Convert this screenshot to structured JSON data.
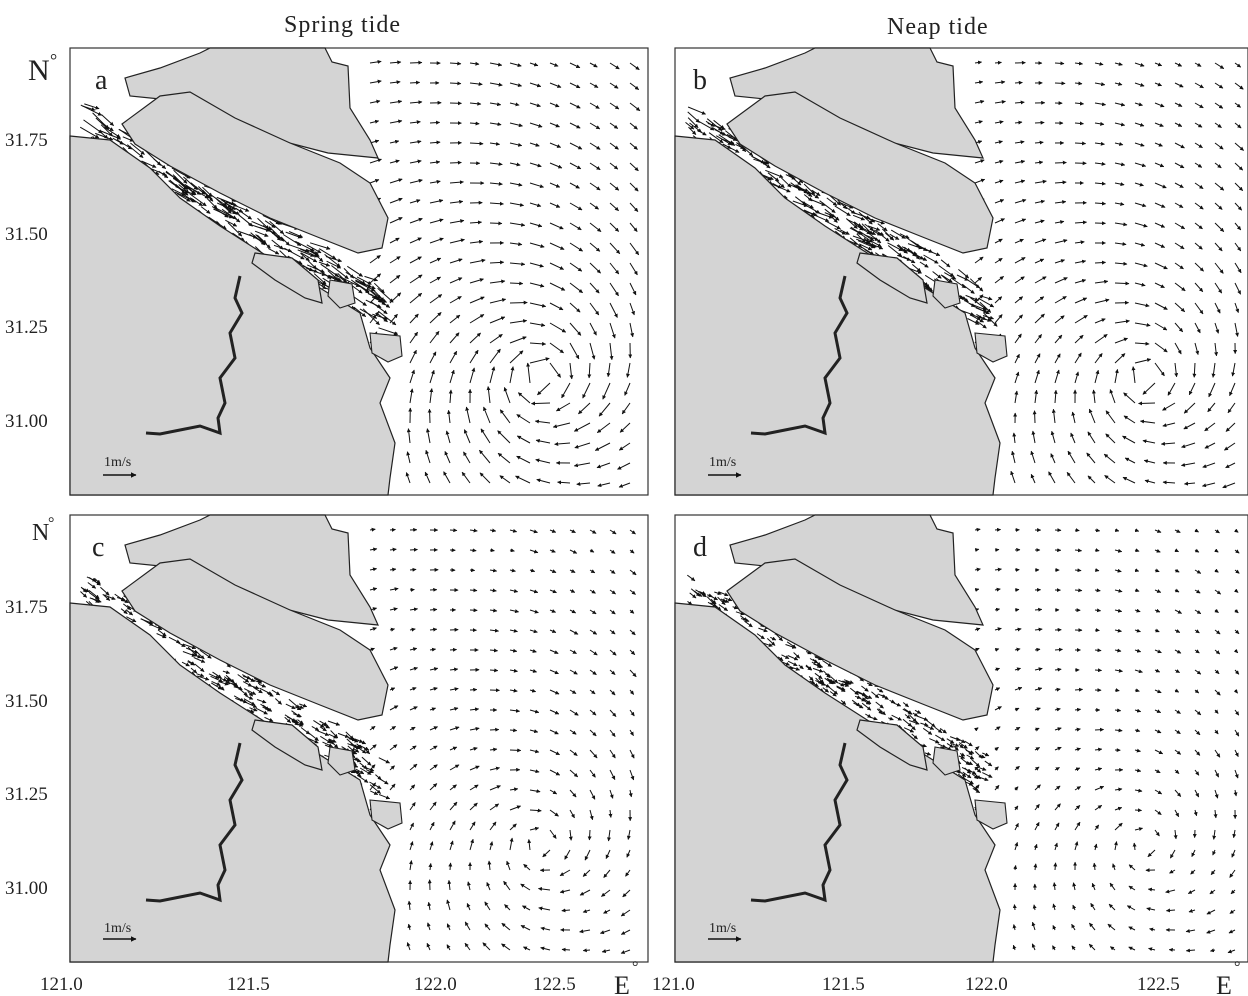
{
  "columns": {
    "left": "Spring tide",
    "right": "Neap tide"
  },
  "axes": {
    "lat_unit": "N",
    "lon_unit": "E",
    "degree_symbol": "°",
    "lat_ticks": [
      "31.75",
      "31.50",
      "31.25",
      "31.00"
    ],
    "lon_ticks": [
      "121.0",
      "121.5",
      "122.0",
      "122.5"
    ],
    "lon_ticks_right": [
      "121.0",
      "121.5",
      "122.0",
      "122.5"
    ]
  },
  "panels": [
    {
      "letter": "a",
      "scale_label": "1m/s"
    },
    {
      "letter": "b",
      "scale_label": "1m/s"
    },
    {
      "letter": "c",
      "scale_label": "1m/s"
    },
    {
      "letter": "d",
      "scale_label": "1m/s"
    }
  ],
  "colors": {
    "land": "#d4d4d4",
    "water": "#ffffff",
    "arrow": "#111111",
    "frame": "#333333"
  }
}
